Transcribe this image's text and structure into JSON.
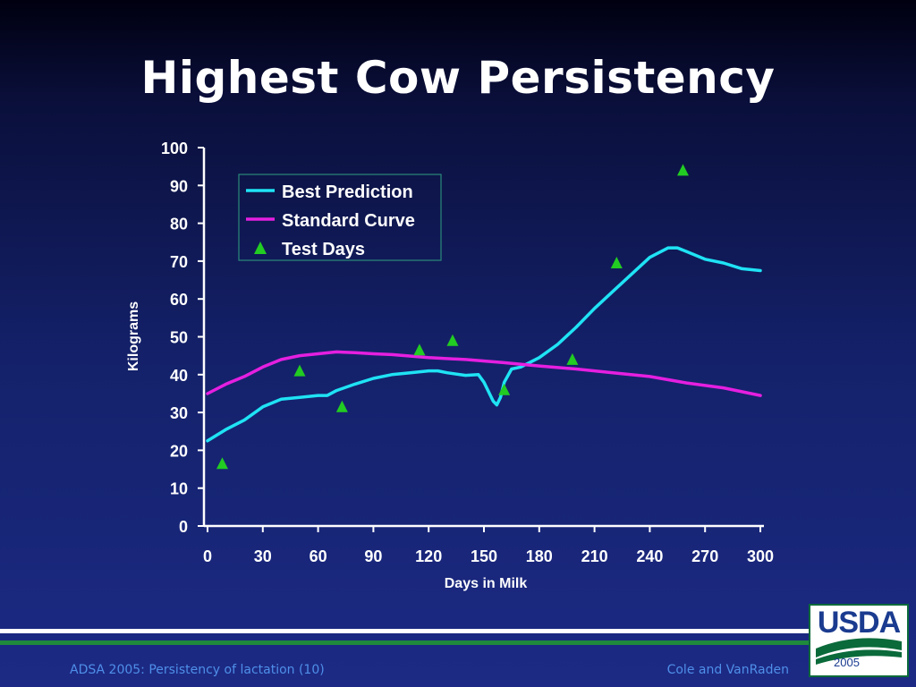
{
  "slide": {
    "title": "Highest Cow Persistency",
    "footer_left": "ADSA 2005: Persistency of lactation (10)",
    "footer_right": "Cole and VanRaden",
    "logo_text": "USDA",
    "logo_year": "2005"
  },
  "colors": {
    "best_prediction": "#1fe3f5",
    "standard_curve": "#e51fe0",
    "test_days": "#22cc22",
    "text": "#ffffff",
    "footer": "#4f8fe8"
  },
  "chart_data": {
    "type": "line",
    "title": "Highest Cow Persistency",
    "xlabel": "Days in Milk",
    "ylabel": "Kilograms",
    "xlim": [
      0,
      300
    ],
    "ylim": [
      0,
      100
    ],
    "x_ticks": [
      "0",
      "30",
      "60",
      "90",
      "120",
      "150",
      "180",
      "210",
      "240",
      "270",
      "300"
    ],
    "y_ticks": [
      "0",
      "10",
      "20",
      "30",
      "40",
      "50",
      "60",
      "70",
      "80",
      "90",
      "100"
    ],
    "grid": false,
    "legend_position": "top-left",
    "series": [
      {
        "name": "Best Prediction",
        "kind": "line",
        "x": [
          0,
          10,
          20,
          30,
          40,
          50,
          60,
          65,
          70,
          80,
          90,
          100,
          110,
          120,
          125,
          130,
          140,
          147,
          150,
          155,
          157,
          159,
          161,
          165,
          170,
          180,
          190,
          200,
          210,
          220,
          230,
          240,
          250,
          255,
          260,
          270,
          280,
          290,
          300
        ],
        "y": [
          22.5,
          25.5,
          28,
          31.5,
          33.5,
          34,
          34.5,
          34.5,
          35.8,
          37.5,
          39,
          40,
          40.5,
          41,
          41,
          40.5,
          39.8,
          40,
          38,
          33,
          32,
          34,
          38,
          41.5,
          42,
          44.5,
          48,
          52.5,
          57.5,
          62,
          66.5,
          71,
          73.5,
          73.5,
          72.5,
          70.5,
          69.5,
          68,
          67.5
        ]
      },
      {
        "name": "Standard Curve",
        "kind": "line",
        "x": [
          0,
          10,
          20,
          30,
          40,
          50,
          60,
          70,
          80,
          90,
          100,
          120,
          140,
          160,
          180,
          200,
          220,
          240,
          260,
          280,
          300
        ],
        "y": [
          35,
          37.5,
          39.5,
          42,
          44,
          45,
          45.5,
          46,
          45.8,
          45.5,
          45.3,
          44.5,
          44,
          43.2,
          42.3,
          41.5,
          40.5,
          39.5,
          37.8,
          36.5,
          34.5
        ]
      },
      {
        "name": "Test Days",
        "kind": "marker",
        "x": [
          8,
          50,
          73,
          115,
          133,
          161,
          198,
          222,
          258
        ],
        "y": [
          16.5,
          41,
          31.5,
          46.5,
          49,
          36,
          44,
          69.5,
          94
        ]
      }
    ]
  }
}
